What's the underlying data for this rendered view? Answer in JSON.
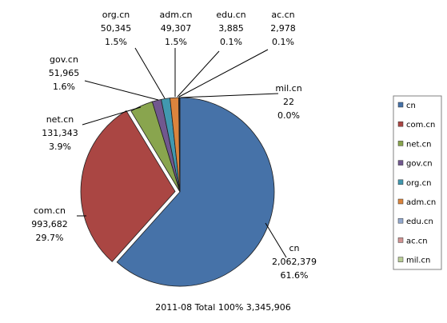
{
  "chart_data": {
    "type": "pie",
    "caption": "2011-08  Total 100%  3,345,906",
    "slices": [
      {
        "name": "cn",
        "value": 2062379,
        "value_label": "2,062,379",
        "percent": "61.6%",
        "color": "#4672A8"
      },
      {
        "name": "com.cn",
        "value": 993682,
        "value_label": "993,682",
        "percent": "29.7%",
        "color": "#AA4643"
      },
      {
        "name": "net.cn",
        "value": 131343,
        "value_label": "131,343",
        "percent": "3.9%",
        "color": "#89A54E"
      },
      {
        "name": "gov.cn",
        "value": 51965,
        "value_label": "51,965",
        "percent": "1.6%",
        "color": "#71588F"
      },
      {
        "name": "org.cn",
        "value": 50345,
        "value_label": "50,345",
        "percent": "1.5%",
        "color": "#4198AF"
      },
      {
        "name": "adm.cn",
        "value": 49307,
        "value_label": "49,307",
        "percent": "1.5%",
        "color": "#DB843D"
      },
      {
        "name": "edu.cn",
        "value": 3885,
        "value_label": "3,885",
        "percent": "0.1%",
        "color": "#93A9CF"
      },
      {
        "name": "ac.cn",
        "value": 2978,
        "value_label": "2,978",
        "percent": "0.1%",
        "color": "#D19392"
      },
      {
        "name": "mil.cn",
        "value": 22,
        "value_label": "22",
        "percent": "0.0%",
        "color": "#B9CD96"
      }
    ],
    "legend": {
      "placement": "right",
      "border": true
    }
  }
}
